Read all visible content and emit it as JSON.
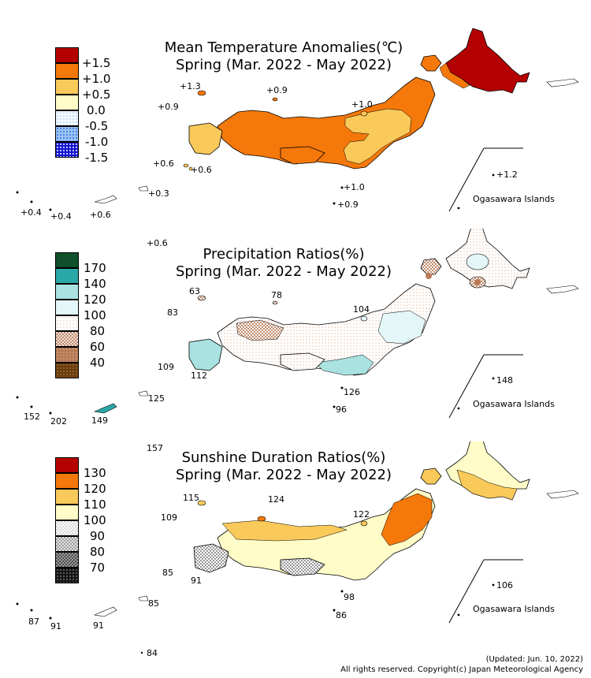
{
  "panels": [
    {
      "id": "temperature",
      "title_line1": "Mean Temperature Anomalies(℃)",
      "title_line2": "Spring (Mar. 2022 - May 2022)",
      "legend": [
        {
          "label": "+1.5",
          "color": "#b40000",
          "pattern": "solid"
        },
        {
          "label": "+1.0",
          "color": "#f5780a",
          "pattern": "solid"
        },
        {
          "label": "+0.5",
          "color": "#f9c95a",
          "pattern": "solid"
        },
        {
          "label": "0.0",
          "color": "#fffcc8",
          "pattern": "solid"
        },
        {
          "label": "-0.5",
          "color": "#ddeeff",
          "pattern": "dots-light"
        },
        {
          "label": "-1.0",
          "color": "#9bc4f5",
          "pattern": "dots"
        },
        {
          "label": "-1.5",
          "color": "#1414d2",
          "pattern": "dots"
        }
      ],
      "island_values": {
        "oki": "+1.3",
        "west_sea": "+0.9",
        "noto": "+0.9",
        "sado": "+1.0",
        "tsushima": "+0.6",
        "goto": "+0.6",
        "izu1": "+1.0",
        "izu2": "+0.9",
        "ogasawara": "+1.2",
        "yonaguni": "+0.4",
        "ishigaki": "+0.4",
        "miyako": "+0.6",
        "okinawa": "+0.3",
        "daito": "+0.6"
      },
      "ogasawara_label": "Ogasawara Islands"
    },
    {
      "id": "precipitation",
      "title_line1": "Precipitation Ratios(%)",
      "title_line2": "Spring (Mar. 2022 - May 2022)",
      "legend": [
        {
          "label": "",
          "color": "#0f4f2a",
          "pattern": "solid"
        },
        {
          "label": "170",
          "color": "#2aa8a6",
          "pattern": "solid"
        },
        {
          "label": "140",
          "color": "#a9e2e0",
          "pattern": "solid"
        },
        {
          "label": "120",
          "color": "#e4f7f8",
          "pattern": "solid"
        },
        {
          "label": "100",
          "color": "#ffffff",
          "pattern": "dots-light-brown"
        },
        {
          "label": "80",
          "color": "#e4c3b5",
          "pattern": "check"
        },
        {
          "label": "60",
          "color": "#b87a55",
          "pattern": "dots"
        },
        {
          "label": "40",
          "color": "#6b3c0c",
          "pattern": "dots"
        }
      ],
      "island_values": {
        "oki": "63",
        "noto": "78",
        "west_sea": "83",
        "sado": "104",
        "tsushima": "109",
        "goto": "112",
        "izu1": "126",
        "izu2": "96",
        "ogasawara": "148",
        "yonaguni": "152",
        "ishigaki": "202",
        "miyako": "149",
        "okinawa": "125",
        "daito": "157"
      },
      "ogasawara_label": "Ogasawara Islands"
    },
    {
      "id": "sunshine",
      "title_line1": "Sunshine Duration Ratios(%)",
      "title_line2": "Spring (Mar. 2022 - May 2022)",
      "legend": [
        {
          "label": "130",
          "color": "#b40000",
          "pattern": "solid"
        },
        {
          "label": "120",
          "color": "#f5780a",
          "pattern": "solid"
        },
        {
          "label": "110",
          "color": "#f9c95a",
          "pattern": "solid"
        },
        {
          "label": "100",
          "color": "#fffcc8",
          "pattern": "solid"
        },
        {
          "label": "90",
          "color": "#ffffff",
          "pattern": "check-light"
        },
        {
          "label": "80",
          "color": "#bdbdbd",
          "pattern": "check"
        },
        {
          "label": "70",
          "color": "#6e6e6e",
          "pattern": "check"
        },
        {
          "label": "",
          "color": "#151515",
          "pattern": "dots-white"
        }
      ],
      "island_values": {
        "oki": "115",
        "noto": "124",
        "west_sea": "109",
        "sado": "122",
        "tsushima": "85",
        "goto": "91",
        "izu1": "98",
        "izu2": "86",
        "ogasawara": "106",
        "yonaguni": "87",
        "ishigaki": "91",
        "miyako": "91",
        "okinawa": "85",
        "daito": "84"
      },
      "ogasawara_label": "Ogasawara Islands"
    }
  ],
  "footer": {
    "updated": "(Updated: Jun. 10, 2022)",
    "copyright": "All rights reserved. Copyright(c) Japan Meteorological Agency"
  }
}
